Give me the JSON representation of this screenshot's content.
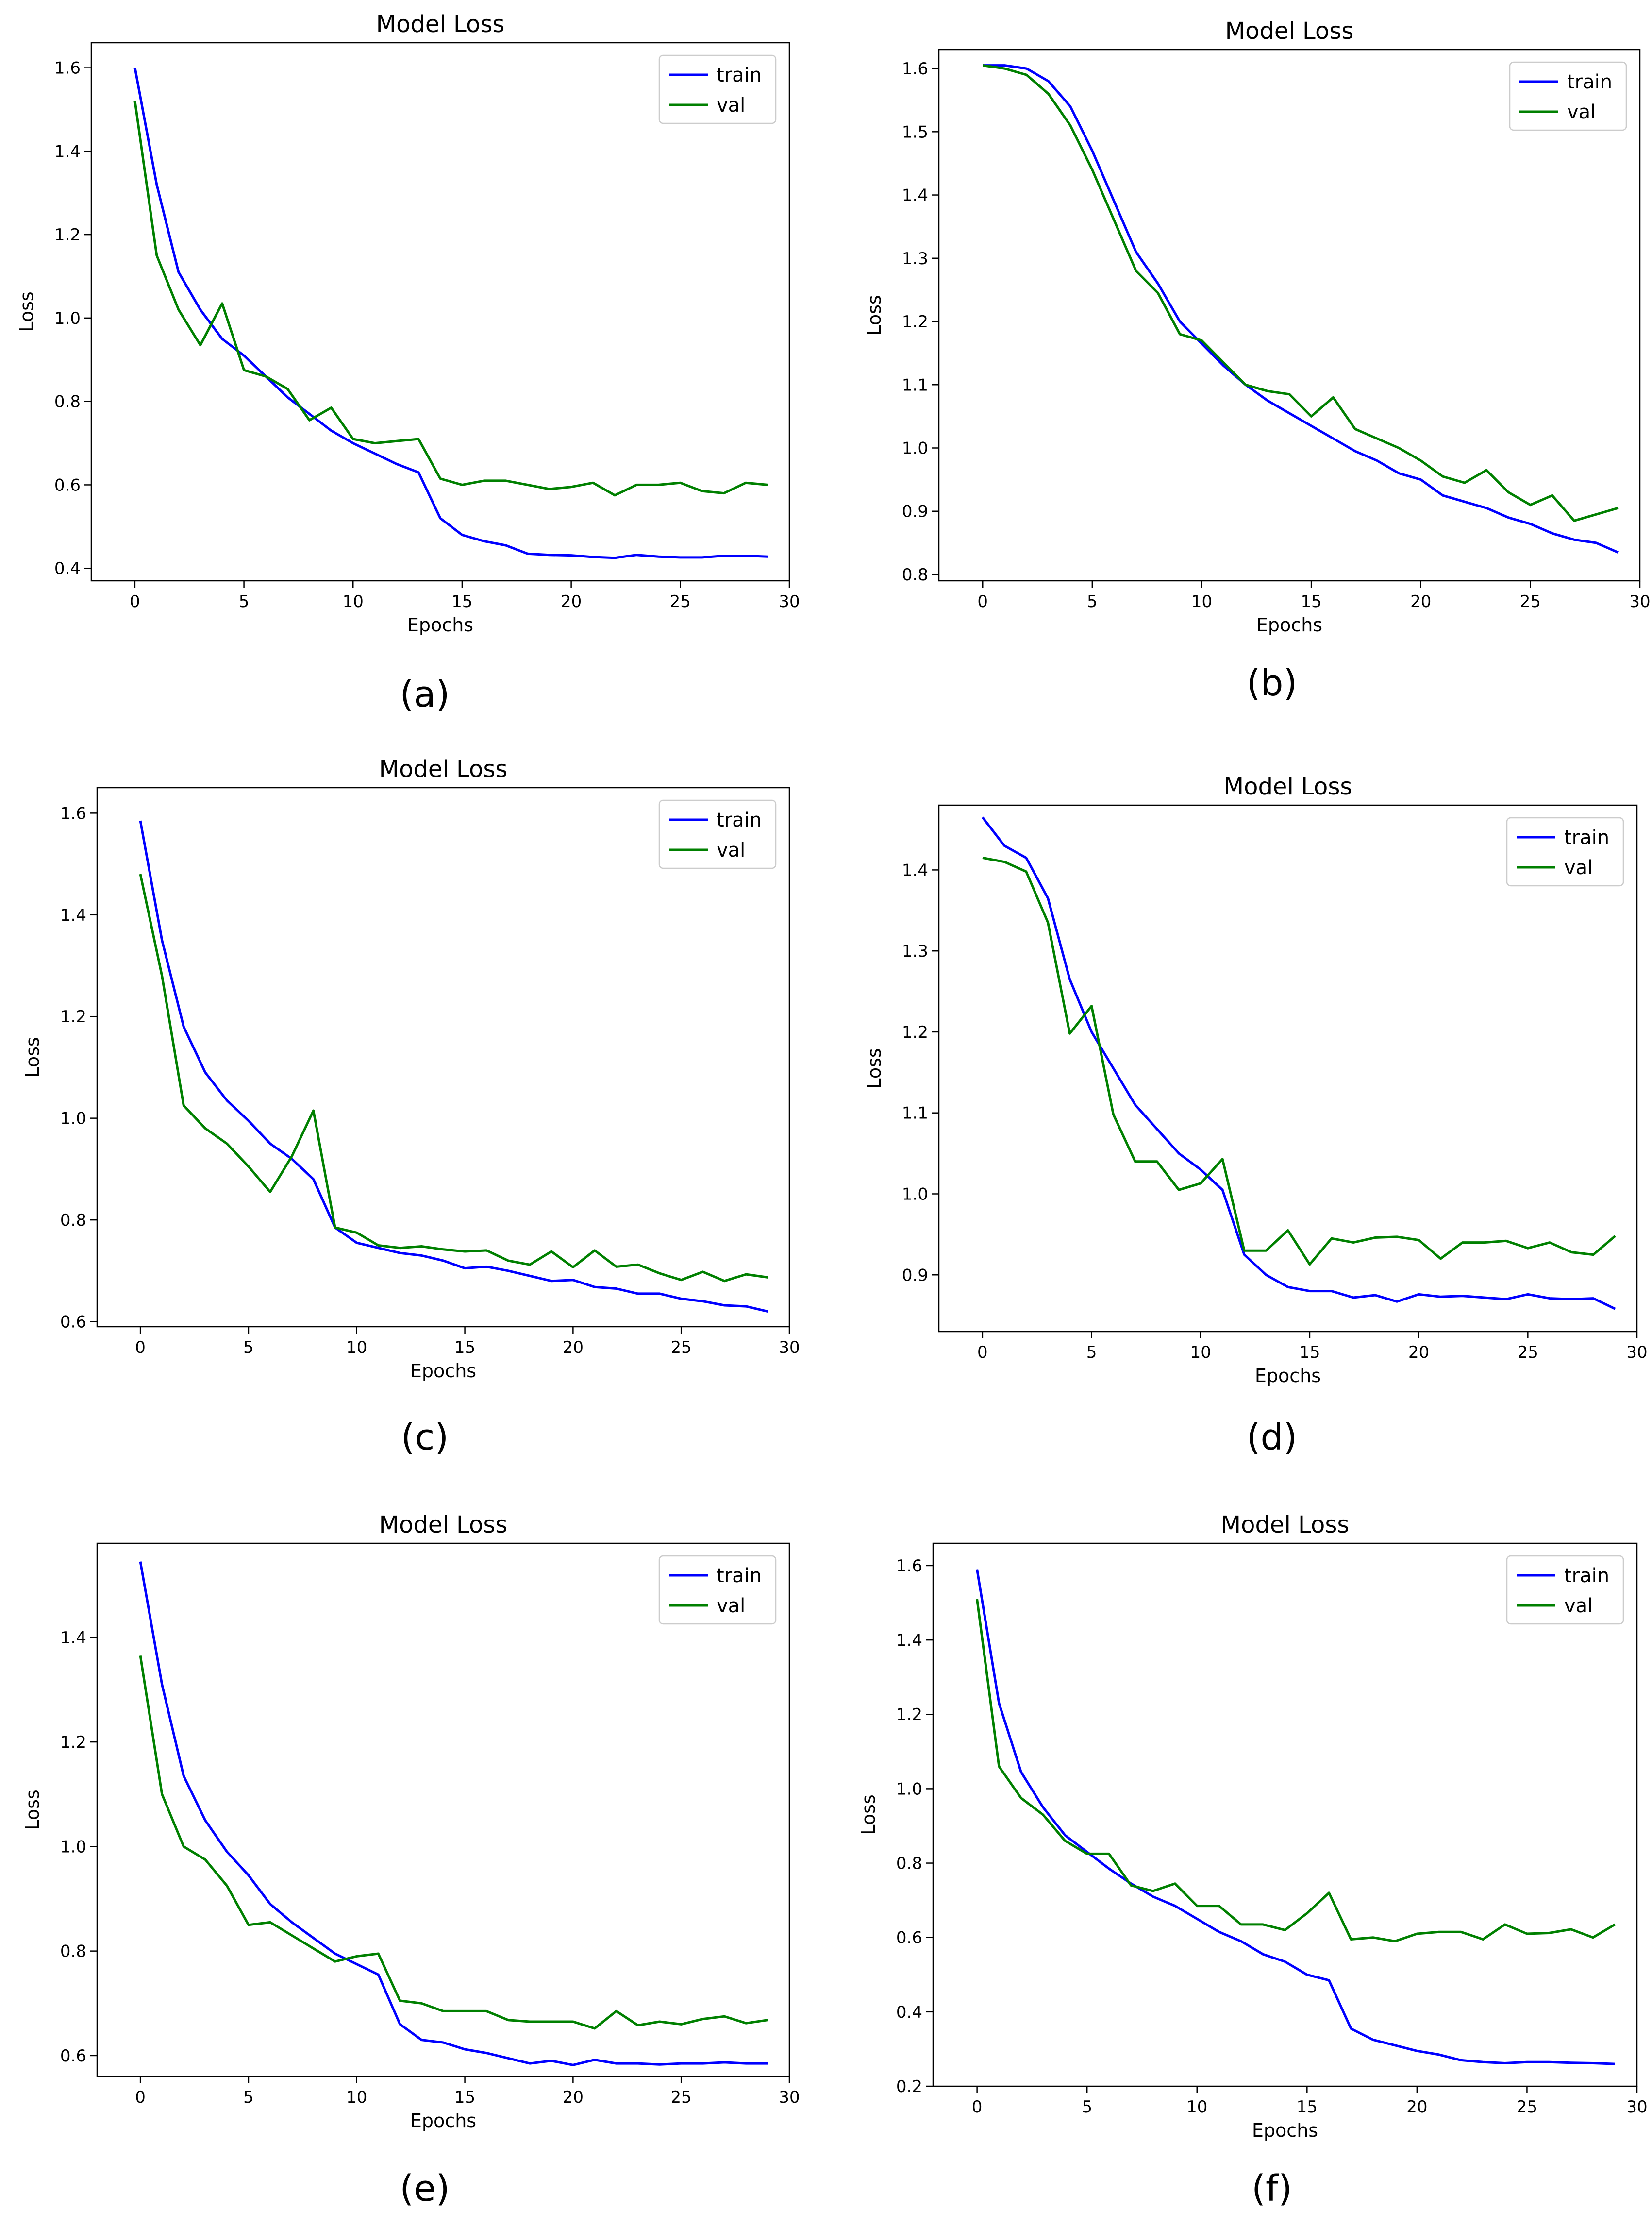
{
  "figure_name": "model-loss-figure",
  "chart_data": [
    {
      "panel": "(a)",
      "type": "line",
      "title": "Model Loss",
      "xlabel": "Epochs",
      "ylabel": "Loss",
      "xlim": [
        -2,
        30
      ],
      "ylim": [
        0.37,
        1.66
      ],
      "xticks": [
        0,
        5,
        10,
        15,
        20,
        25,
        30
      ],
      "yticks": [
        0.4,
        0.6,
        0.8,
        1.0,
        1.2,
        1.4,
        1.6
      ],
      "ytick_labels": [
        "0.4",
        "0.6",
        "0.8",
        "1.0",
        "1.2",
        "1.4",
        "1.6"
      ],
      "legend": "top-right",
      "x": [
        0,
        1,
        2,
        3,
        4,
        5,
        6,
        7,
        8,
        9,
        10,
        11,
        12,
        13,
        14,
        15,
        16,
        17,
        18,
        19,
        20,
        21,
        22,
        23,
        24,
        25,
        26,
        27,
        28,
        29
      ],
      "series": [
        {
          "name": "train",
          "color": "#0000ff",
          "values": [
            1.6,
            1.32,
            1.11,
            1.02,
            0.95,
            0.91,
            0.86,
            0.81,
            0.77,
            0.73,
            0.7,
            0.675,
            0.65,
            0.63,
            0.52,
            0.48,
            0.465,
            0.455,
            0.435,
            0.432,
            0.431,
            0.427,
            0.425,
            0.432,
            0.428,
            0.426,
            0.426,
            0.43,
            0.43,
            0.428
          ]
        },
        {
          "name": "val",
          "color": "#008000",
          "values": [
            1.52,
            1.15,
            1.02,
            0.935,
            1.035,
            0.875,
            0.86,
            0.83,
            0.755,
            0.785,
            0.71,
            0.7,
            0.705,
            0.71,
            0.615,
            0.6,
            0.61,
            0.61,
            0.6,
            0.59,
            0.595,
            0.605,
            0.575,
            0.6,
            0.6,
            0.605,
            0.585,
            0.58,
            0.605,
            0.6
          ]
        }
      ]
    },
    {
      "panel": "(b)",
      "type": "line",
      "title": "Model Loss",
      "xlabel": "Epochs",
      "ylabel": "Loss",
      "xlim": [
        -2,
        30
      ],
      "ylim": [
        0.79,
        1.63
      ],
      "xticks": [
        0,
        5,
        10,
        15,
        20,
        25,
        30
      ],
      "yticks": [
        0.8,
        0.9,
        1.0,
        1.1,
        1.2,
        1.3,
        1.4,
        1.5,
        1.6
      ],
      "ytick_labels": [
        "0.8",
        "0.9",
        "1.0",
        "1.1",
        "1.2",
        "1.3",
        "1.4",
        "1.5",
        "1.6"
      ],
      "legend": "top-right",
      "x": [
        0,
        1,
        2,
        3,
        4,
        5,
        6,
        7,
        8,
        9,
        10,
        11,
        12,
        13,
        14,
        15,
        16,
        17,
        18,
        19,
        20,
        21,
        22,
        23,
        24,
        25,
        26,
        27,
        28,
        29
      ],
      "series": [
        {
          "name": "train",
          "color": "#0000ff",
          "values": [
            1.605,
            1.605,
            1.6,
            1.58,
            1.54,
            1.47,
            1.39,
            1.31,
            1.26,
            1.2,
            1.165,
            1.13,
            1.1,
            1.075,
            1.055,
            1.035,
            1.015,
            0.995,
            0.98,
            0.96,
            0.95,
            0.925,
            0.915,
            0.905,
            0.89,
            0.88,
            0.865,
            0.855,
            0.85,
            0.835
          ]
        },
        {
          "name": "val",
          "color": "#008000",
          "values": [
            1.605,
            1.6,
            1.59,
            1.56,
            1.51,
            1.44,
            1.36,
            1.28,
            1.245,
            1.18,
            1.17,
            1.135,
            1.1,
            1.09,
            1.085,
            1.05,
            1.08,
            1.03,
            1.015,
            1.0,
            0.98,
            0.955,
            0.945,
            0.965,
            0.93,
            0.91,
            0.925,
            0.885,
            0.895,
            0.905
          ]
        }
      ]
    },
    {
      "panel": "(c)",
      "type": "line",
      "title": "Model Loss",
      "xlabel": "Epochs",
      "ylabel": "Loss",
      "xlim": [
        -2,
        30
      ],
      "ylim": [
        0.59,
        1.65
      ],
      "xticks": [
        0,
        5,
        10,
        15,
        20,
        25,
        30
      ],
      "yticks": [
        0.6,
        0.8,
        1.0,
        1.2,
        1.4,
        1.6
      ],
      "ytick_labels": [
        "0.6",
        "0.8",
        "1.0",
        "1.2",
        "1.4",
        "1.6"
      ],
      "legend": "top-right",
      "x": [
        0,
        1,
        2,
        3,
        4,
        5,
        6,
        7,
        8,
        9,
        10,
        11,
        12,
        13,
        14,
        15,
        16,
        17,
        18,
        19,
        20,
        21,
        22,
        23,
        24,
        25,
        26,
        27,
        28,
        29
      ],
      "series": [
        {
          "name": "train",
          "color": "#0000ff",
          "values": [
            1.585,
            1.35,
            1.18,
            1.09,
            1.035,
            0.995,
            0.95,
            0.92,
            0.88,
            0.785,
            0.755,
            0.745,
            0.735,
            0.73,
            0.72,
            0.705,
            0.708,
            0.7,
            0.69,
            0.68,
            0.682,
            0.668,
            0.665,
            0.655,
            0.655,
            0.645,
            0.64,
            0.632,
            0.63,
            0.62
          ]
        },
        {
          "name": "val",
          "color": "#008000",
          "values": [
            1.48,
            1.28,
            1.025,
            0.98,
            0.95,
            0.905,
            0.855,
            0.925,
            1.015,
            0.785,
            0.775,
            0.75,
            0.745,
            0.748,
            0.742,
            0.738,
            0.74,
            0.72,
            0.712,
            0.738,
            0.707,
            0.74,
            0.708,
            0.712,
            0.695,
            0.682,
            0.698,
            0.68,
            0.693,
            0.687
          ]
        }
      ]
    },
    {
      "panel": "(d)",
      "type": "line",
      "title": "Model Loss",
      "xlabel": "Epochs",
      "ylabel": "Loss",
      "xlim": [
        -2,
        30
      ],
      "ylim": [
        0.83,
        1.48
      ],
      "xticks": [
        0,
        5,
        10,
        15,
        20,
        25,
        30
      ],
      "yticks": [
        0.9,
        1.0,
        1.1,
        1.2,
        1.3,
        1.4
      ],
      "ytick_labels": [
        "0.9",
        "1.0",
        "1.1",
        "1.2",
        "1.3",
        "1.4"
      ],
      "legend": "top-right",
      "x": [
        0,
        1,
        2,
        3,
        4,
        5,
        6,
        7,
        8,
        9,
        10,
        11,
        12,
        13,
        14,
        15,
        16,
        17,
        18,
        19,
        20,
        21,
        22,
        23,
        24,
        25,
        26,
        27,
        28,
        29
      ],
      "series": [
        {
          "name": "train",
          "color": "#0000ff",
          "values": [
            1.465,
            1.43,
            1.415,
            1.365,
            1.265,
            1.2,
            1.155,
            1.11,
            1.08,
            1.05,
            1.03,
            1.005,
            0.925,
            0.9,
            0.885,
            0.88,
            0.88,
            0.872,
            0.875,
            0.867,
            0.876,
            0.873,
            0.874,
            0.872,
            0.87,
            0.876,
            0.871,
            0.87,
            0.871,
            0.858
          ]
        },
        {
          "name": "val",
          "color": "#008000",
          "values": [
            1.415,
            1.41,
            1.398,
            1.335,
            1.198,
            1.232,
            1.098,
            1.04,
            1.04,
            1.005,
            1.013,
            1.043,
            0.93,
            0.93,
            0.955,
            0.913,
            0.945,
            0.94,
            0.946,
            0.947,
            0.943,
            0.92,
            0.94,
            0.94,
            0.942,
            0.933,
            0.94,
            0.928,
            0.925,
            0.948
          ]
        }
      ]
    },
    {
      "panel": "(e)",
      "type": "line",
      "title": "Model Loss",
      "xlabel": "Epochs",
      "ylabel": "Loss",
      "xlim": [
        -2,
        30
      ],
      "ylim": [
        0.56,
        1.58
      ],
      "xticks": [
        0,
        5,
        10,
        15,
        20,
        25,
        30
      ],
      "yticks": [
        0.6,
        0.8,
        1.0,
        1.2,
        1.4
      ],
      "ytick_labels": [
        "0.6",
        "0.8",
        "1.0",
        "1.2",
        "1.4"
      ],
      "legend": "top-right",
      "x": [
        0,
        1,
        2,
        3,
        4,
        5,
        6,
        7,
        8,
        9,
        10,
        11,
        12,
        13,
        14,
        15,
        16,
        17,
        18,
        19,
        20,
        21,
        22,
        23,
        24,
        25,
        26,
        27,
        28,
        29
      ],
      "series": [
        {
          "name": "train",
          "color": "#0000ff",
          "values": [
            1.545,
            1.31,
            1.135,
            1.05,
            0.99,
            0.945,
            0.89,
            0.855,
            0.825,
            0.795,
            0.775,
            0.755,
            0.66,
            0.63,
            0.625,
            0.612,
            0.605,
            0.595,
            0.585,
            0.59,
            0.582,
            0.592,
            0.585,
            0.585,
            0.583,
            0.585,
            0.585,
            0.587,
            0.585,
            0.585
          ]
        },
        {
          "name": "val",
          "color": "#008000",
          "values": [
            1.365,
            1.1,
            1.0,
            0.975,
            0.925,
            0.85,
            0.855,
            0.83,
            0.805,
            0.78,
            0.79,
            0.795,
            0.705,
            0.7,
            0.685,
            0.685,
            0.685,
            0.668,
            0.665,
            0.665,
            0.665,
            0.652,
            0.685,
            0.658,
            0.665,
            0.66,
            0.67,
            0.675,
            0.662,
            0.668
          ]
        }
      ]
    },
    {
      "panel": "(f)",
      "type": "line",
      "title": "Model Loss",
      "xlabel": "Epochs",
      "ylabel": "Loss",
      "xlim": [
        -2,
        30
      ],
      "ylim": [
        0.2,
        1.66
      ],
      "xticks": [
        0,
        5,
        10,
        15,
        20,
        25,
        30
      ],
      "yticks": [
        0.2,
        0.4,
        0.6,
        0.8,
        1.0,
        1.2,
        1.4,
        1.6
      ],
      "ytick_labels": [
        "0.2",
        "0.4",
        "0.6",
        "0.8",
        "1.0",
        "1.2",
        "1.4",
        "1.6"
      ],
      "legend": "top-right",
      "x": [
        0,
        1,
        2,
        3,
        4,
        5,
        6,
        7,
        8,
        9,
        10,
        11,
        12,
        13,
        14,
        15,
        16,
        17,
        18,
        19,
        20,
        21,
        22,
        23,
        24,
        25,
        26,
        27,
        28,
        29
      ],
      "series": [
        {
          "name": "train",
          "color": "#0000ff",
          "values": [
            1.59,
            1.23,
            1.045,
            0.95,
            0.875,
            0.83,
            0.785,
            0.745,
            0.71,
            0.685,
            0.65,
            0.615,
            0.59,
            0.555,
            0.535,
            0.5,
            0.485,
            0.355,
            0.325,
            0.31,
            0.295,
            0.285,
            0.27,
            0.265,
            0.262,
            0.265,
            0.265,
            0.263,
            0.262,
            0.26
          ]
        },
        {
          "name": "val",
          "color": "#008000",
          "values": [
            1.51,
            1.06,
            0.975,
            0.93,
            0.86,
            0.825,
            0.825,
            0.74,
            0.725,
            0.745,
            0.685,
            0.685,
            0.635,
            0.635,
            0.62,
            0.665,
            0.72,
            0.595,
            0.6,
            0.59,
            0.61,
            0.615,
            0.615,
            0.595,
            0.635,
            0.61,
            0.612,
            0.622,
            0.6,
            0.635
          ]
        }
      ]
    }
  ]
}
